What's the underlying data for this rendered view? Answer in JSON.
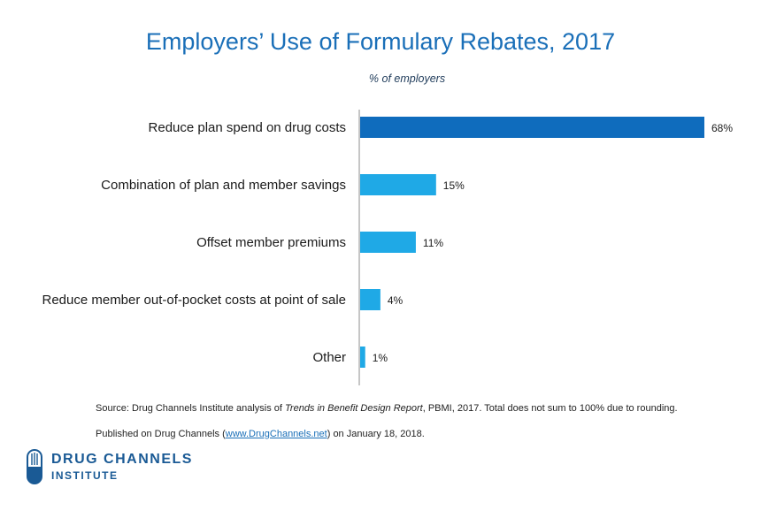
{
  "chart_data": {
    "type": "bar",
    "orientation": "horizontal",
    "title": "Employers’ Use of Formulary Rebates, 2017",
    "subtitle": "% of employers",
    "categories": [
      "Reduce plan spend on drug costs",
      "Combination of plan and member savings",
      "Offset member premiums",
      "Reduce member out-of-pocket costs at point of sale",
      "Other"
    ],
    "values": [
      68,
      15,
      11,
      4,
      1
    ],
    "value_labels": [
      "68%",
      "15%",
      "11%",
      "4%",
      "1%"
    ],
    "xlim": [
      0,
      68
    ],
    "grid": false,
    "legend": "none",
    "colors": {
      "highlight": "#0f6cbd",
      "bar": "#1fa9e6"
    }
  },
  "footnotes": {
    "source_prefix": "Source: Drug Channels Institute analysis of ",
    "source_italic": "Trends in Benefit Design Report",
    "source_suffix": ", PBMI, 2017. Total does not sum to 100% due to rounding.",
    "published_prefix": "Published on Drug Channels (",
    "published_link": "www.DrugChannels.net",
    "published_suffix": ") on January 18, 2018."
  },
  "logo": {
    "line1": "DRUG CHANNELS",
    "line2": "INSTITUTE",
    "icon": "capsule-icon"
  }
}
